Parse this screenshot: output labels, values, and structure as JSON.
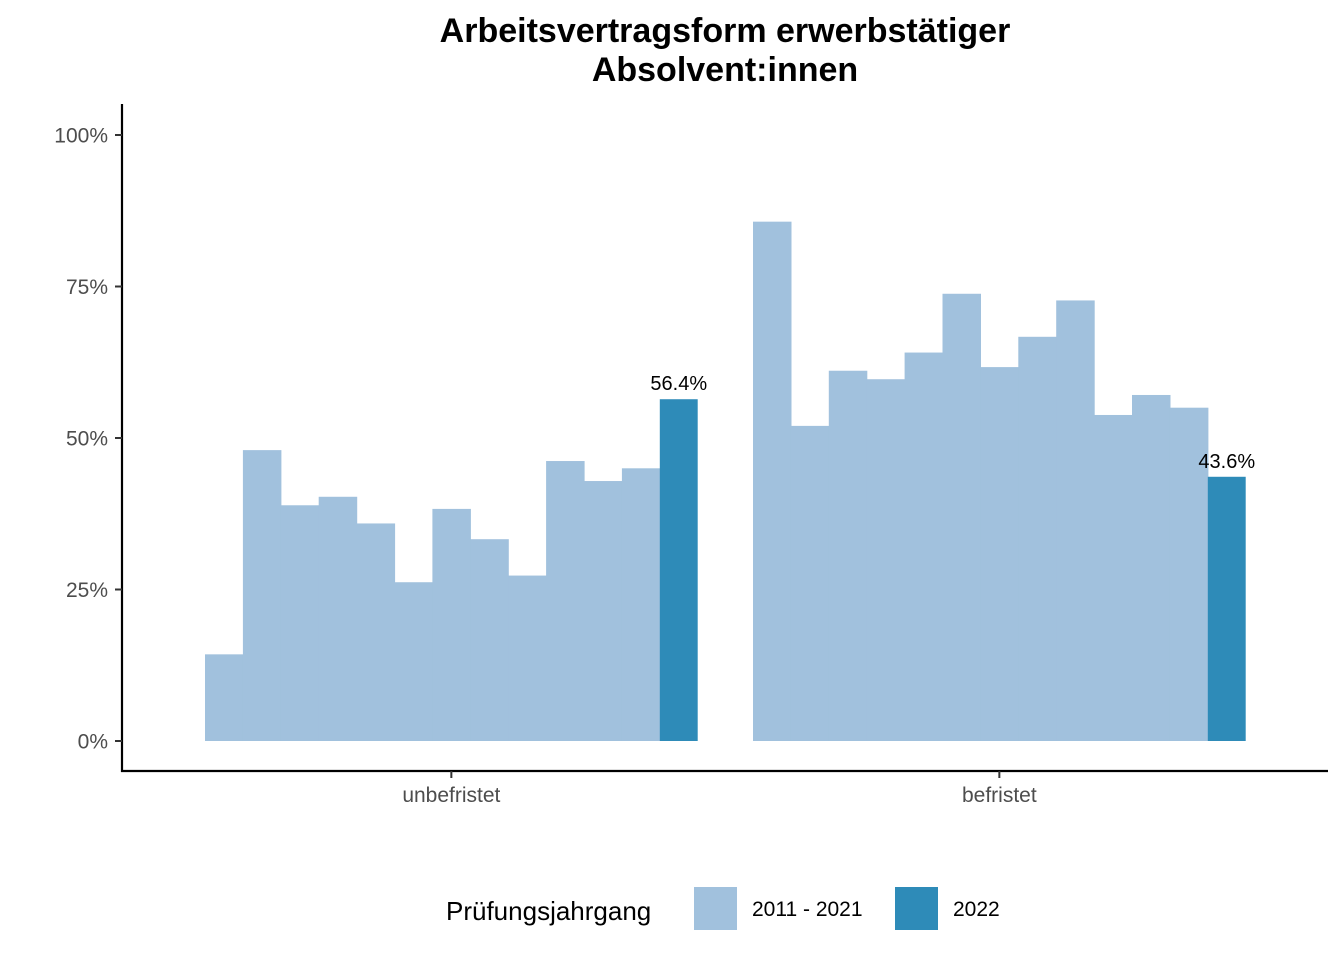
{
  "chart_data": {
    "type": "bar",
    "title": "Arbeitsvertragsform erwerbstätiger",
    "subtitle": "Absolvent:innen",
    "categories": [
      "unbefristet",
      "befristet"
    ],
    "ylim": [
      0,
      100
    ],
    "y_ticks": [
      0,
      25,
      50,
      75,
      100
    ],
    "y_tick_labels": [
      "0%",
      "25%",
      "50%",
      "75%",
      "100%"
    ],
    "series": [
      {
        "name": "2011 - 2021",
        "color": "#a1c1dd",
        "values": [
          [
            14.3,
            48.0,
            38.9,
            40.3,
            35.9,
            26.2,
            38.3,
            33.3,
            27.3,
            46.2,
            42.9,
            45.0
          ],
          [
            85.7,
            52.0,
            61.1,
            59.7,
            64.1,
            73.8,
            61.7,
            66.7,
            72.7,
            53.8,
            57.1,
            55.0
          ]
        ]
      },
      {
        "name": "2022",
        "color": "#2e8bb8",
        "values": [
          56.4,
          43.6
        ],
        "labels": [
          "56.4%",
          "43.6%"
        ]
      }
    ],
    "legend": {
      "title": "Prüfungsjahrgang",
      "position": "bottom",
      "entries": [
        "2011 - 2021",
        "2022"
      ]
    },
    "grid": false
  }
}
